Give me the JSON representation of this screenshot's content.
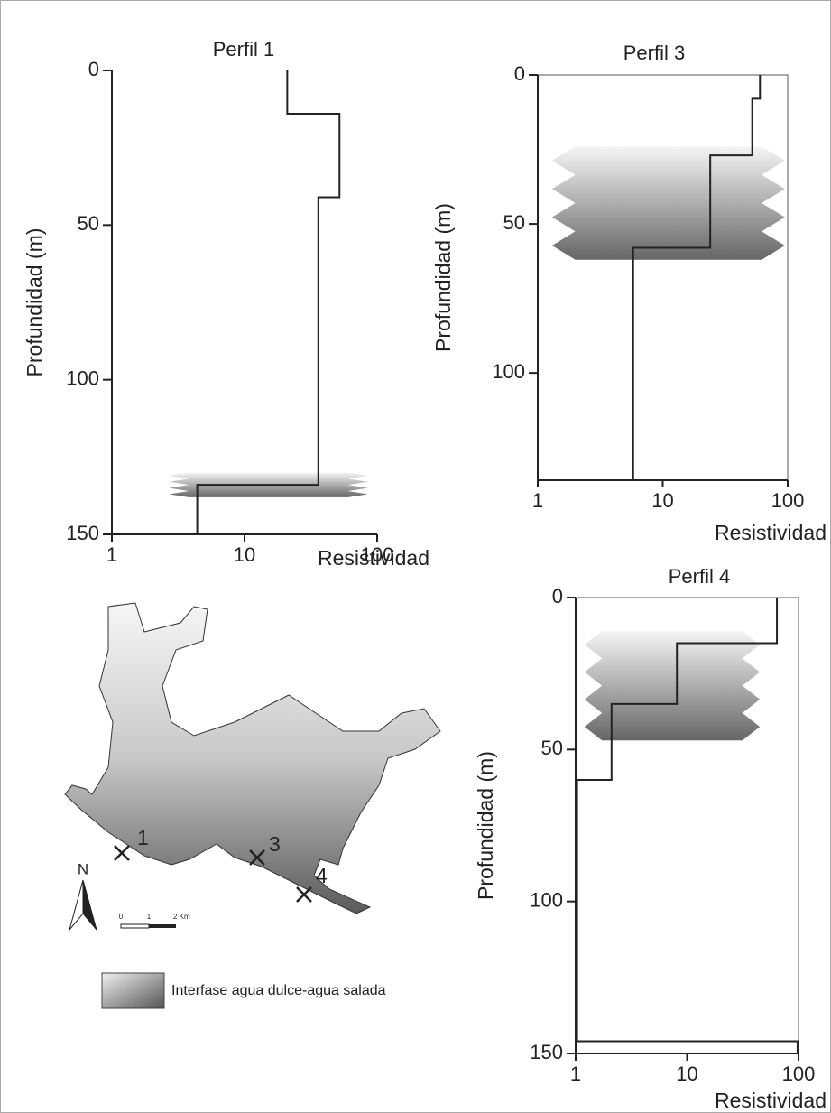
{
  "chart_data": [
    {
      "type": "step",
      "title": "Perfil 1",
      "xlabel": "Resistividad",
      "ylabel": "Profundidad (m)",
      "x": [
        21,
        21,
        52,
        52,
        36,
        36,
        4.4,
        4.4
      ],
      "values": [
        0,
        14,
        14,
        41,
        41,
        134,
        134,
        150
      ],
      "xlim": [
        1,
        100
      ],
      "xticks": [
        1,
        10,
        100
      ],
      "xscale": "log",
      "ylim": [
        0,
        150
      ],
      "yticks": [
        0,
        50,
        100,
        150
      ],
      "color": "#222222",
      "interface": {
        "resistivity": [
          2.7,
          85
        ],
        "depth": [
          130,
          138
        ]
      }
    },
    {
      "type": "step",
      "title": "Perfil 3",
      "xlabel": "Resistividad",
      "ylabel": "Profundidad (m)",
      "x": [
        60,
        60,
        52,
        52,
        24,
        24,
        5.8,
        5.8
      ],
      "values": [
        0,
        8,
        8,
        27,
        27,
        58,
        58,
        136
      ],
      "xlim": [
        1,
        100
      ],
      "xticks": [
        1,
        10,
        100
      ],
      "xscale": "log",
      "ylim": [
        0,
        136
      ],
      "yticks": [
        0,
        50,
        100
      ],
      "color": "#222222",
      "interface": {
        "resistivity": [
          1.3,
          95
        ],
        "depth": [
          24,
          62
        ]
      }
    },
    {
      "type": "step",
      "title": "Perfil 4",
      "xlabel": "Resistividad",
      "ylabel": "Profundidad (m)",
      "x": [
        64,
        64,
        8.1,
        8.1,
        2.1,
        2.1,
        1.03,
        1.03,
        98,
        98
      ],
      "values": [
        0,
        15,
        15,
        35,
        35,
        60,
        60,
        146,
        146,
        150
      ],
      "xlim": [
        1,
        100
      ],
      "xticks": [
        1,
        10,
        100
      ],
      "xscale": "log",
      "ylim": [
        0,
        150
      ],
      "yticks": [
        0,
        50,
        100,
        150
      ],
      "color": "#222222",
      "interface": {
        "resistivity": [
          1.2,
          45
        ],
        "depth": [
          11,
          47
        ]
      }
    }
  ],
  "map": {
    "sites": [
      "1",
      "3",
      "4"
    ],
    "north": "N",
    "scale": [
      "0",
      "1",
      "2 Km"
    ]
  },
  "legend": {
    "label": "Interfase agua dulce-agua salada"
  }
}
